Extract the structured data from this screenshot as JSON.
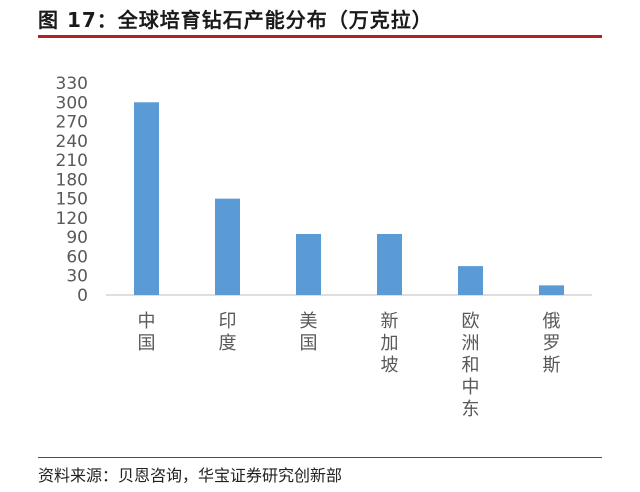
{
  "header": {
    "title": "图 17：全球培育钻石产能分布（万克拉）"
  },
  "footer": {
    "source": "资料来源：贝恩咨询，华宝证券研究创新部"
  },
  "colors": {
    "bar": "#5b9bd5",
    "rule": "#b22222",
    "axis": "#bfbfbf",
    "text": "#595959"
  },
  "chart_data": {
    "type": "bar",
    "categories": [
      "中国",
      "印度",
      "美国",
      "新加坡",
      "欧洲和中东",
      "俄罗斯"
    ],
    "values": [
      300,
      150,
      95,
      95,
      45,
      15
    ],
    "yticks": [
      0,
      30,
      60,
      90,
      120,
      150,
      180,
      210,
      240,
      270,
      300,
      330
    ],
    "ylim": [
      0,
      330
    ],
    "grid": false,
    "legend": "none"
  }
}
